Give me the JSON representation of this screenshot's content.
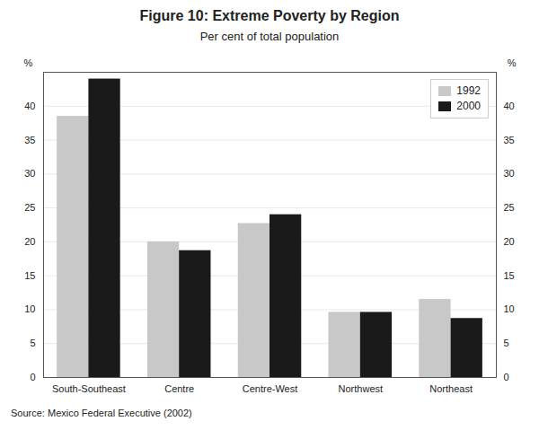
{
  "chart_data": {
    "type": "bar",
    "title": "Figure 10: Extreme Poverty by Region",
    "subtitle": "Per cent of total population",
    "source": "Source: Mexico Federal Executive (2002)",
    "categories": [
      "South-Southeast",
      "Centre",
      "Centre-West",
      "Northwest",
      "Northeast"
    ],
    "series": [
      {
        "name": "1992",
        "color": "#c8c8c8",
        "values": [
          38.5,
          20.0,
          22.7,
          9.6,
          11.5
        ]
      },
      {
        "name": "2000",
        "color": "#1a1a1a",
        "values": [
          44.0,
          18.7,
          24.0,
          9.6,
          8.7
        ]
      }
    ],
    "ylabel": "%",
    "y2label": "%",
    "ylim": [
      0,
      45
    ],
    "yticks": [
      0,
      5,
      10,
      15,
      20,
      25,
      30,
      35,
      40
    ],
    "y2lim": [
      0,
      45
    ],
    "y2ticks": [
      0,
      5,
      10,
      15,
      20,
      25,
      30,
      35,
      40
    ],
    "grid": true,
    "legend": "upper right"
  }
}
